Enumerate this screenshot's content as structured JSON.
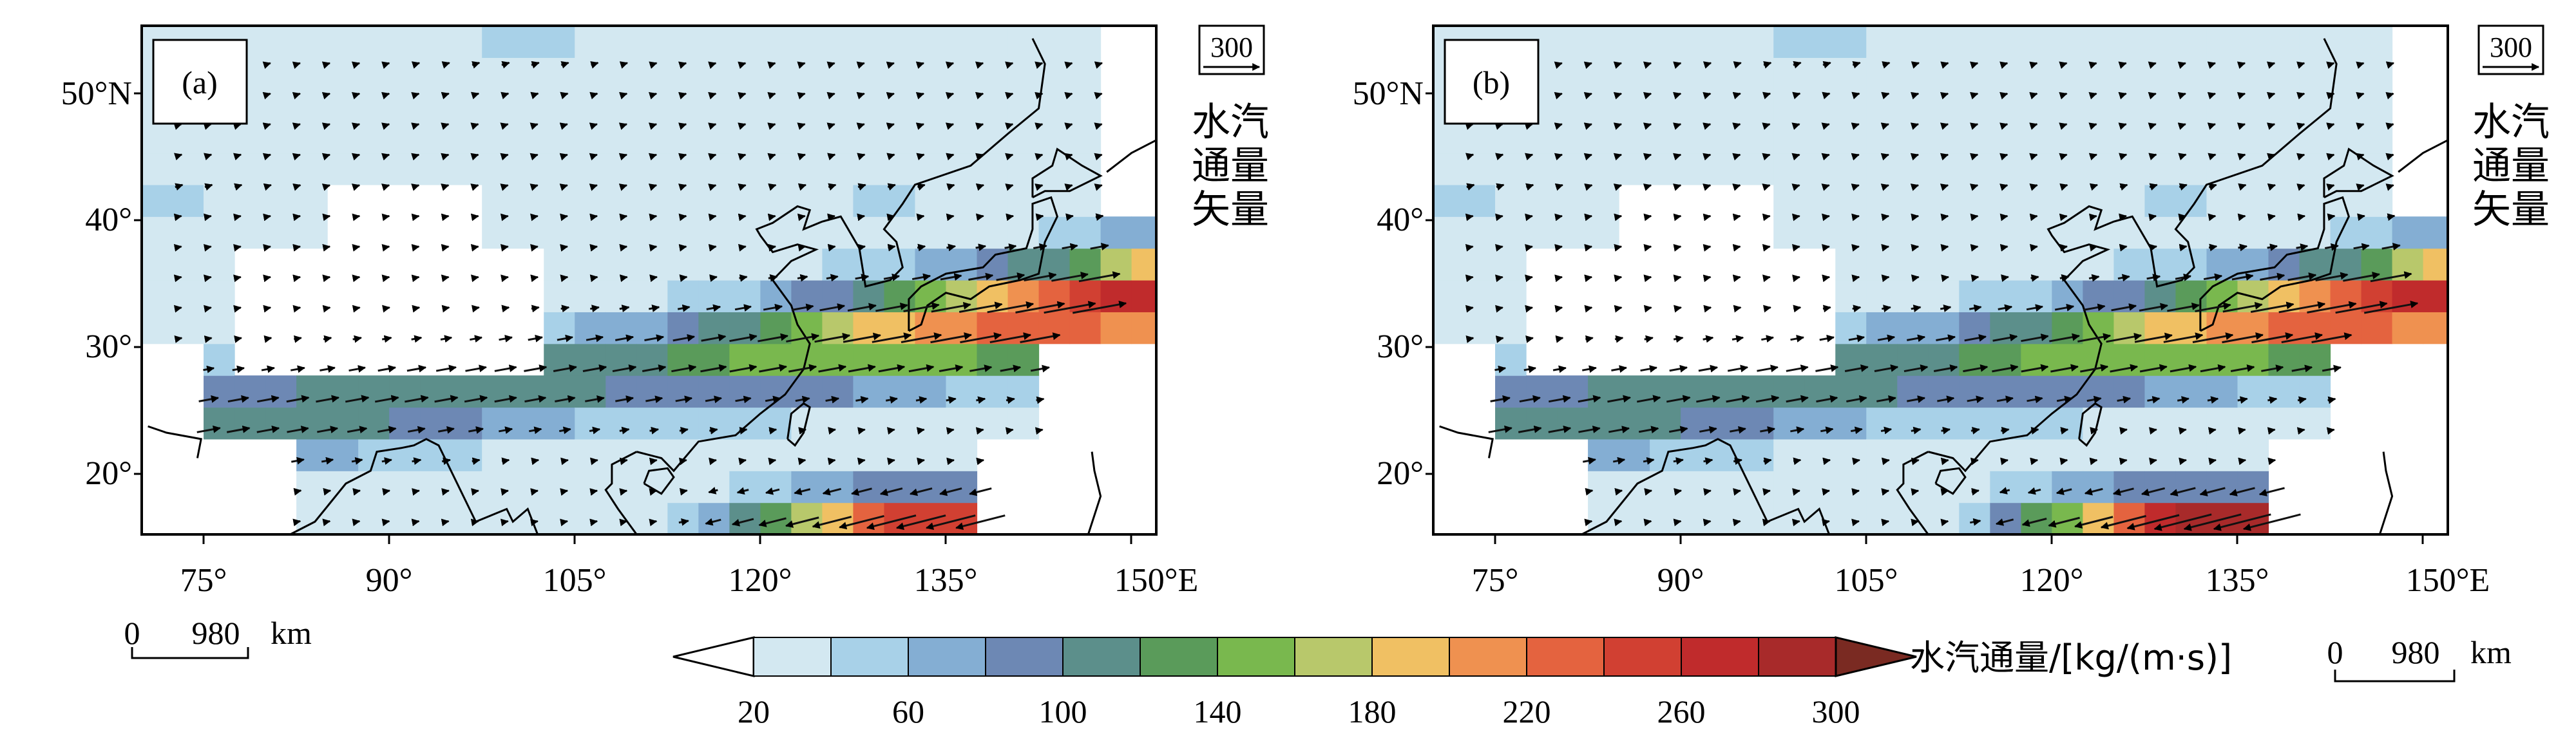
{
  "panels": [
    {
      "label": "(a)",
      "x_ticks": [
        "75°",
        "90°",
        "105°",
        "120°",
        "135°",
        "150°E"
      ],
      "y_ticks": [
        "50°N",
        "40°",
        "30°",
        "20°"
      ],
      "reference_vector": {
        "value": "300",
        "caption": [
          "水汽",
          "通量",
          "矢量"
        ]
      }
    },
    {
      "label": "(b)",
      "x_ticks": [
        "75°",
        "90°",
        "105°",
        "120°",
        "135°",
        "150°E"
      ],
      "y_ticks": [
        "50°N",
        "40°",
        "30°",
        "20°"
      ],
      "reference_vector": {
        "value": "300",
        "caption": [
          "水汽",
          "通量",
          "矢量"
        ]
      }
    }
  ],
  "scale_bars": [
    {
      "zero": "0",
      "value": "980",
      "unit": "km"
    },
    {
      "zero": "0",
      "value": "980",
      "unit": "km"
    }
  ],
  "colorbar": {
    "title": "水汽通量/[kg/(m·s)]",
    "tick_labels": [
      "20",
      "60",
      "100",
      "140",
      "180",
      "220",
      "260",
      "300"
    ],
    "levels": [
      20,
      40,
      60,
      80,
      100,
      120,
      140,
      160,
      180,
      200,
      220,
      240,
      260,
      280,
      300
    ],
    "colors": [
      "#d3e8f1",
      "#a8d1e8",
      "#84aed3",
      "#6d88b4",
      "#5c8f8b",
      "#5a9b5a",
      "#79b84e",
      "#b8c86b",
      "#f0c063",
      "#ef9150",
      "#e4633f",
      "#d14032",
      "#c02b2c",
      "#a82a2a"
    ],
    "under_color": "#ffffff",
    "over_color": "#7a2a22"
  },
  "map": {
    "lon_range": [
      68,
      150
    ],
    "lat_range": [
      15,
      55
    ],
    "style": "shaded water vapour flux with flux vectors and coastlines"
  }
}
